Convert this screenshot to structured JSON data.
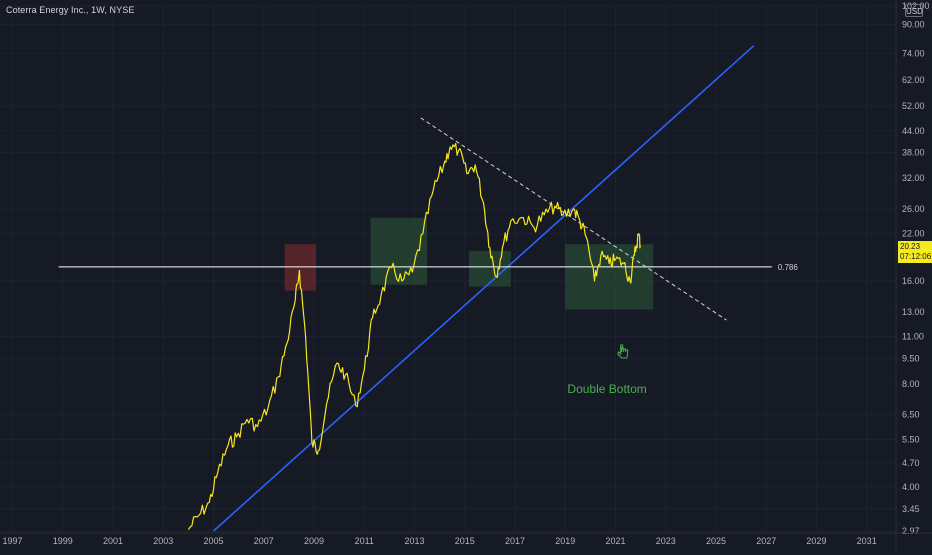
{
  "header": {
    "symbol_title": "Coterra Energy Inc., 1W, NYSE",
    "currency": "USD"
  },
  "price_tag": {
    "price": "20.23",
    "countdown": "07:12:06",
    "color": "#f5ea1f"
  },
  "annotations": {
    "fib_level_label": "0.786",
    "pattern_label": "Double Bottom",
    "pattern_color": "#4caf50",
    "cursor_icon": "hand-pointer-icon"
  },
  "colors": {
    "background": "#161a25",
    "price_line": "#f5e61e",
    "trendline": "#2962ff",
    "fib_line": "#ffffff",
    "resistance_dashed": "#d1d4dc",
    "box_red": "#8b2e2e",
    "box_green": "#2e5a3a"
  },
  "chart_data": {
    "type": "line",
    "title": "Coterra Energy Inc., 1W, NYSE",
    "xlabel": "",
    "ylabel": "",
    "y_scale": "log",
    "xlim": [
      "1996-07",
      "2032-03"
    ],
    "ylim": [
      2.97,
      102
    ],
    "x_tick_labels": [
      "1997",
      "1999",
      "2001",
      "2003",
      "2005",
      "2007",
      "2009",
      "2011",
      "2013",
      "2015",
      "2017",
      "2019",
      "2021",
      "2023",
      "2025",
      "2027",
      "2029",
      "2031"
    ],
    "y_tick_labels": [
      "102.00",
      "90.00",
      "74.00",
      "62.00",
      "52.00",
      "44.00",
      "38.00",
      "32.00",
      "26.00",
      "22.00",
      "16.00",
      "13.00",
      "11.00",
      "9.50",
      "8.00",
      "6.50",
      "5.50",
      "4.70",
      "4.00",
      "3.45",
      "2.97"
    ],
    "series": [
      {
        "name": "",
        "points": [
          [
            "2004-01",
            3.0
          ],
          [
            "2004-06",
            3.3
          ],
          [
            "2004-11",
            3.6
          ],
          [
            "2005-03",
            4.4
          ],
          [
            "2005-08",
            5.3
          ],
          [
            "2005-12",
            5.6
          ],
          [
            "2006-05",
            6.3
          ],
          [
            "2006-10",
            6.0
          ],
          [
            "2007-03",
            6.8
          ],
          [
            "2007-08",
            8.4
          ],
          [
            "2007-12",
            10.5
          ],
          [
            "2008-04",
            14.0
          ],
          [
            "2008-06",
            17.2
          ],
          [
            "2008-09",
            11.0
          ],
          [
            "2008-12",
            5.4
          ],
          [
            "2009-03",
            5.1
          ],
          [
            "2009-07",
            7.0
          ],
          [
            "2009-12",
            9.2
          ],
          [
            "2010-04",
            8.5
          ],
          [
            "2010-09",
            6.9
          ],
          [
            "2011-01",
            8.8
          ],
          [
            "2011-05",
            12.5
          ],
          [
            "2011-09",
            14.5
          ],
          [
            "2012-02",
            17.5
          ],
          [
            "2012-07",
            16.0
          ],
          [
            "2012-12",
            17.0
          ],
          [
            "2013-05",
            22.0
          ],
          [
            "2013-10",
            29.5
          ],
          [
            "2014-03",
            35.0
          ],
          [
            "2014-06",
            39.5
          ],
          [
            "2014-10",
            38.5
          ],
          [
            "2015-02",
            33.0
          ],
          [
            "2015-06",
            35.0
          ],
          [
            "2015-10",
            27.0
          ],
          [
            "2016-01",
            20.0
          ],
          [
            "2016-04",
            16.5
          ],
          [
            "2016-07",
            20.0
          ],
          [
            "2016-11",
            24.0
          ],
          [
            "2017-05",
            24.5
          ],
          [
            "2017-10",
            23.0
          ],
          [
            "2018-03",
            25.0
          ],
          [
            "2018-08",
            26.5
          ],
          [
            "2018-12",
            25.0
          ],
          [
            "2019-05",
            26.0
          ],
          [
            "2019-08",
            24.0
          ],
          [
            "2019-11",
            21.5
          ],
          [
            "2020-03",
            16.0
          ],
          [
            "2020-06",
            19.0
          ],
          [
            "2020-10",
            18.0
          ],
          [
            "2021-01",
            18.5
          ],
          [
            "2021-05",
            18.0
          ],
          [
            "2021-08",
            16.0
          ],
          [
            "2021-10",
            19.0
          ],
          [
            "2021-12",
            22.0
          ],
          [
            "2022-01",
            20.23
          ]
        ]
      }
    ],
    "overlays": {
      "trendline": {
        "from": [
          "2005-01",
          2.97
        ],
        "to": [
          "2026-07",
          78.0
        ]
      },
      "fib_level": {
        "value": 17.6,
        "label": "0.786",
        "from": "1998-11",
        "to": "2032-01"
      },
      "resistance_dashed": {
        "from": [
          "2013-04",
          48.0
        ],
        "to": [
          "2025-06",
          12.3
        ]
      },
      "boxes": [
        {
          "from": "2007-11",
          "to": "2009-02",
          "ymin": 15.0,
          "ymax": 20.5,
          "color": "red"
        },
        {
          "from": "2011-04",
          "to": "2013-07",
          "ymin": 15.6,
          "ymax": 24.5,
          "color": "green"
        },
        {
          "from": "2015-03",
          "to": "2016-11",
          "ymin": 15.4,
          "ymax": 19.6,
          "color": "green"
        },
        {
          "from": "2019-01",
          "to": "2022-07",
          "ymin": 13.2,
          "ymax": 20.5,
          "color": "green"
        }
      ]
    }
  }
}
